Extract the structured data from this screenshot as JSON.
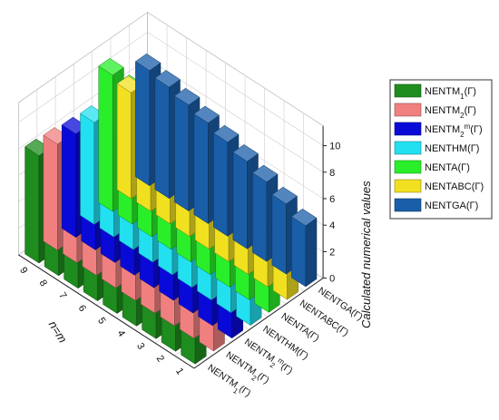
{
  "chart_data": {
    "type": "bar",
    "subtype": "3d-grouped-bar",
    "zlabel": "Calculated numerical values",
    "xlabel": "n=m",
    "zlim": [
      0,
      11
    ],
    "zticks": [
      "0",
      "2",
      "4",
      "6",
      "8",
      "10"
    ],
    "grid": true,
    "legend_position": "right",
    "categories": [
      "1",
      "2",
      "3",
      "4",
      "5",
      "6",
      "7",
      "8",
      "9"
    ],
    "series": [
      {
        "key": "ntm1",
        "name": "NENTM",
        "sub": "1",
        "sup": "",
        "suffix": "(Γ)",
        "color": "#1e8c1e",
        "values": [
          3.6,
          4.4,
          5.1,
          5.7,
          6.3,
          6.8,
          7.3,
          7.7,
          8.1
        ]
      },
      {
        "key": "ntm2",
        "name": "NENTM",
        "sub": "2",
        "sup": "",
        "suffix": "(Γ)",
        "color": "#f08080",
        "values": [
          3.7,
          4.5,
          5.2,
          5.9,
          6.4,
          6.9,
          7.3,
          7.7,
          8.0
        ]
      },
      {
        "key": "ntm2m",
        "name": "NENTM",
        "sub": "2",
        "sup": "m",
        "suffix": "(Γ)",
        "color": "#0a0ad8",
        "values": [
          3.2,
          4.0,
          4.8,
          5.4,
          6.0,
          6.5,
          7.0,
          7.4,
          7.8
        ]
      },
      {
        "key": "nthm",
        "name": "NENTHM",
        "sub": "",
        "sup": "",
        "suffix": "(Γ)",
        "color": "#22e0f0",
        "values": [
          2.9,
          3.7,
          4.5,
          5.2,
          5.8,
          6.4,
          6.9,
          7.3,
          7.7
        ]
      },
      {
        "key": "nta",
        "name": "NENTA",
        "sub": "",
        "sup": "",
        "suffix": "(Γ)",
        "color": "#2aee2a",
        "values": [
          5.6,
          6.5,
          7.3,
          8.0,
          8.6,
          9.1,
          9.6,
          10.0,
          10.3
        ]
      },
      {
        "key": "ntabc",
        "name": "NENTABC",
        "sub": "",
        "sup": "",
        "suffix": "(Γ)",
        "color": "#f0e020",
        "values": [
          3.9,
          4.6,
          5.3,
          5.9,
          6.4,
          6.9,
          7.3,
          7.7,
          8.0
        ]
      },
      {
        "key": "ntga",
        "name": "NENTGA",
        "sub": "",
        "sup": "",
        "suffix": "(Γ)",
        "color": "#1a5ea8",
        "values": [
          4.6,
          5.3,
          6.0,
          6.6,
          7.1,
          7.6,
          8.0,
          8.4,
          8.7
        ]
      }
    ]
  },
  "legend": {
    "items": [
      {
        "name": "NENTM",
        "sub": "1",
        "sup": "",
        "suffix": "(Γ)",
        "color": "#1e8c1e"
      },
      {
        "name": "NENTM",
        "sub": "2",
        "sup": "",
        "suffix": "(Γ)",
        "color": "#f08080"
      },
      {
        "name": "NENTM",
        "sub": "2",
        "sup": "m",
        "suffix": "(Γ)",
        "color": "#0a0ad8"
      },
      {
        "name": "NENTHM",
        "sub": "",
        "sup": "",
        "suffix": "(Γ)",
        "color": "#22e0f0"
      },
      {
        "name": "NENTA",
        "sub": "",
        "sup": "",
        "suffix": "(Γ)",
        "color": "#2aee2a"
      },
      {
        "name": "NENTABC",
        "sub": "",
        "sup": "",
        "suffix": "(Γ)",
        "color": "#f0e020"
      },
      {
        "name": "NENTGA",
        "sub": "",
        "sup": "",
        "suffix": "(Γ)",
        "color": "#1a5ea8"
      }
    ]
  }
}
